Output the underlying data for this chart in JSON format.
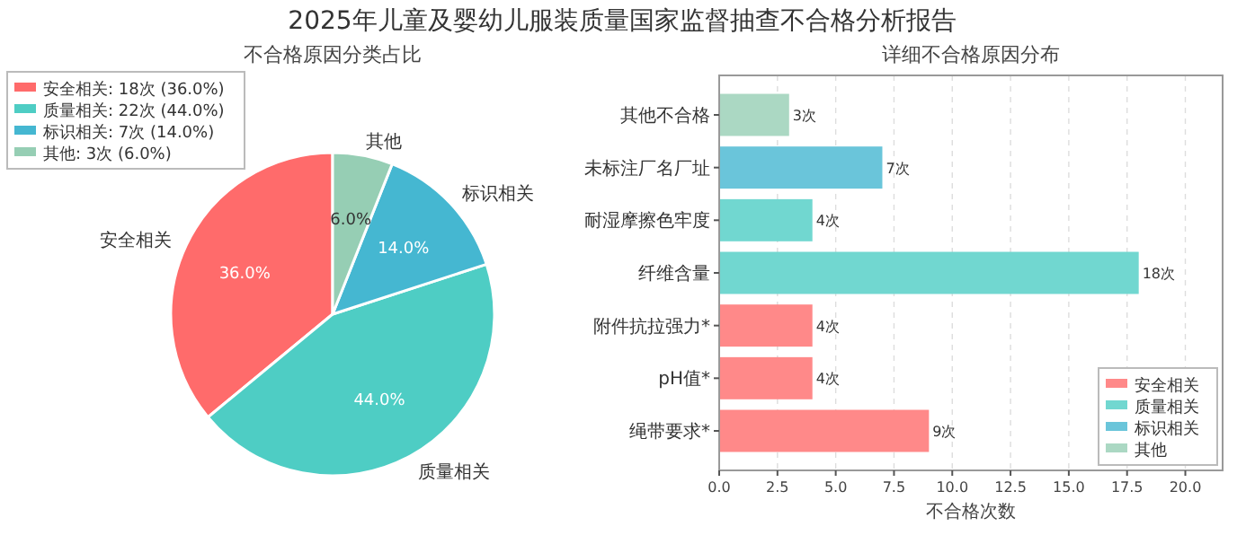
{
  "chart_data": [
    {
      "type": "pie",
      "title": "不合格原因分类占比",
      "categories": [
        "安全相关",
        "质量相关",
        "标识相关",
        "其他"
      ],
      "values": [
        36,
        44,
        14,
        6
      ],
      "colors": [
        "#ff6b6b",
        "#4ecdc4",
        "#45b7d1",
        "#96ceb4"
      ],
      "value_labels": [
        "36.0%",
        "44.0%",
        "14.0%",
        "6.0%"
      ],
      "annotations": [
        "2025年儿童及婴幼儿服装质量国家监督抽查不合格分析报告",
        "安全相关: 18次 (36.0%)",
        "质量相关: 22次 (44.0%)",
        "标识相关: 7次 (14.0%)",
        "其他: 3次 (6.0%)"
      ]
    },
    {
      "type": "bar",
      "orientation": "horizontal",
      "title": "详细不合格原因分布",
      "xlabel": "不合格次数",
      "categories": [
        "其他不合格",
        "未标注厂名厂址",
        "耐湿摩擦色牢度",
        "纤维含量",
        "附件抗拉强力*",
        "pH值*",
        "绳带要求*"
      ],
      "series": [
        {
          "name": "安全相关",
          "color": "#ff8989",
          "values": [
            null,
            null,
            null,
            null,
            4,
            4,
            9
          ],
          "value_labels": [
            null,
            null,
            null,
            null,
            "4次",
            "4次",
            "9次"
          ]
        },
        {
          "name": "质量相关",
          "color": "#71d7d0",
          "values": [
            null,
            null,
            4,
            18,
            null,
            null,
            null
          ],
          "value_labels": [
            null,
            null,
            "4次",
            "18次",
            null,
            null,
            null
          ]
        },
        {
          "name": "标识相关",
          "color": "#6ac5da",
          "values": [
            null,
            7,
            null,
            null,
            null,
            null,
            null
          ],
          "value_labels": [
            null,
            "7次",
            null,
            null,
            null,
            null,
            null
          ]
        },
        {
          "name": "其他",
          "color": "#abd8c3",
          "values": [
            3,
            null,
            null,
            null,
            null,
            null,
            null
          ],
          "value_labels": [
            "3次",
            null,
            null,
            null,
            null,
            null,
            null
          ]
        }
      ],
      "xlim": [
        0,
        21.6
      ],
      "xticks": [
        {
          "value": 0,
          "label": "0.0"
        },
        {
          "value": 2.5,
          "label": "2.5"
        },
        {
          "value": 5,
          "label": "5.0"
        },
        {
          "value": 7.5,
          "label": "7.5"
        },
        {
          "value": 10,
          "label": "10.0"
        },
        {
          "value": 12.5,
          "label": "12.5"
        },
        {
          "value": 15,
          "label": "15.0"
        },
        {
          "value": 17.5,
          "label": "17.5"
        },
        {
          "value": 20,
          "label": "20.0"
        }
      ],
      "grid": "x",
      "legend": "bottom right"
    }
  ]
}
